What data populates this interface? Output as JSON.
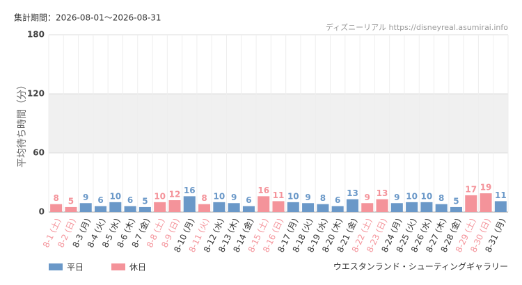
{
  "header": {
    "period": "集計期間：2026-08-01～2026-08-31",
    "source": "ディズニーリアル https://disneyreal.asumirai.info"
  },
  "chart_data": {
    "type": "bar",
    "ylabel": "平均待ち時間（分）",
    "footer": "ウエスタンランド・シューティングギャラリー",
    "categories": [
      "8-1 (土)",
      "8-2 (日)",
      "8-3 (月)",
      "8-4 (火)",
      "8-5 (水)",
      "8-6 (木)",
      "8-7 (金)",
      "8-8 (土)",
      "8-9 (日)",
      "8-10 (月)",
      "8-11 (火)",
      "8-12 (水)",
      "8-13 (木)",
      "8-14 (金)",
      "8-15 (土)",
      "8-16 (日)",
      "8-17 (月)",
      "8-18 (火)",
      "8-19 (水)",
      "8-20 (木)",
      "8-21 (金)",
      "8-22 (土)",
      "8-23 (日)",
      "8-24 (月)",
      "8-25 (火)",
      "8-26 (水)",
      "8-27 (木)",
      "8-28 (金)",
      "8-29 (土)",
      "8-30 (日)",
      "8-31 (月)"
    ],
    "series": [
      {
        "name": "平日",
        "color": "#6a98c8",
        "values": [
          null,
          null,
          9,
          6,
          10,
          6,
          5,
          null,
          null,
          16,
          null,
          10,
          9,
          6,
          null,
          null,
          10,
          9,
          8,
          6,
          13,
          null,
          null,
          9,
          10,
          10,
          8,
          5,
          null,
          null,
          11
        ]
      },
      {
        "name": "休日",
        "color": "#f4939a",
        "values": [
          8,
          5,
          null,
          null,
          null,
          null,
          null,
          10,
          12,
          null,
          8,
          null,
          null,
          null,
          16,
          11,
          null,
          null,
          null,
          null,
          null,
          9,
          13,
          null,
          null,
          null,
          null,
          null,
          17,
          19,
          null
        ]
      }
    ],
    "ylim": [
      0,
      180
    ],
    "yticks": [
      0,
      60,
      120,
      180
    ],
    "grid": true
  }
}
